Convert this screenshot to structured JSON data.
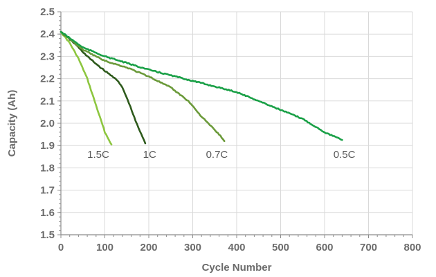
{
  "chart_data": {
    "type": "line",
    "xlabel": "Cycle Number",
    "ylabel": "Capacity (Ah)",
    "xlim": [
      0,
      800
    ],
    "ylim": [
      1.5,
      2.5
    ],
    "xticks": [
      0,
      100,
      200,
      300,
      400,
      500,
      600,
      700,
      800
    ],
    "yticks": [
      "1.5",
      "1.6",
      "1.7",
      "1.8",
      "1.9",
      "2.0",
      "2.1",
      "2.2",
      "2.3",
      "2.4",
      "2.5"
    ],
    "grid": true,
    "series": [
      {
        "name": "1.5C",
        "color": "#8dc63f",
        "label_at": [
          85,
          1.86
        ],
        "points": [
          [
            0,
            2.41
          ],
          [
            20,
            2.36
          ],
          [
            40,
            2.29
          ],
          [
            60,
            2.2
          ],
          [
            80,
            2.08
          ],
          [
            100,
            1.96
          ],
          [
            115,
            1.905
          ]
        ]
      },
      {
        "name": "1C",
        "color": "#2e5a1c",
        "label_at": [
          202,
          1.86
        ],
        "points": [
          [
            0,
            2.41
          ],
          [
            30,
            2.36
          ],
          [
            60,
            2.3
          ],
          [
            90,
            2.25
          ],
          [
            110,
            2.22
          ],
          [
            125,
            2.2
          ],
          [
            140,
            2.16
          ],
          [
            155,
            2.09
          ],
          [
            170,
            2.01
          ],
          [
            183,
            1.95
          ],
          [
            192,
            1.91
          ]
        ]
      },
      {
        "name": "0.7C",
        "color": "#6b9a3a",
        "label_at": [
          355,
          1.86
        ],
        "points": [
          [
            0,
            2.41
          ],
          [
            50,
            2.33
          ],
          [
            100,
            2.28
          ],
          [
            150,
            2.25
          ],
          [
            200,
            2.21
          ],
          [
            250,
            2.16
          ],
          [
            290,
            2.1
          ],
          [
            320,
            2.03
          ],
          [
            345,
            1.98
          ],
          [
            360,
            1.95
          ],
          [
            372,
            1.92
          ]
        ]
      },
      {
        "name": "0.5C",
        "color": "#1aa047",
        "label_at": [
          645,
          1.86
        ],
        "points": [
          [
            0,
            2.41
          ],
          [
            50,
            2.34
          ],
          [
            100,
            2.3
          ],
          [
            200,
            2.24
          ],
          [
            300,
            2.19
          ],
          [
            400,
            2.14
          ],
          [
            450,
            2.1
          ],
          [
            500,
            2.06
          ],
          [
            550,
            2.02
          ],
          [
            600,
            1.96
          ],
          [
            640,
            1.925
          ]
        ]
      }
    ]
  }
}
